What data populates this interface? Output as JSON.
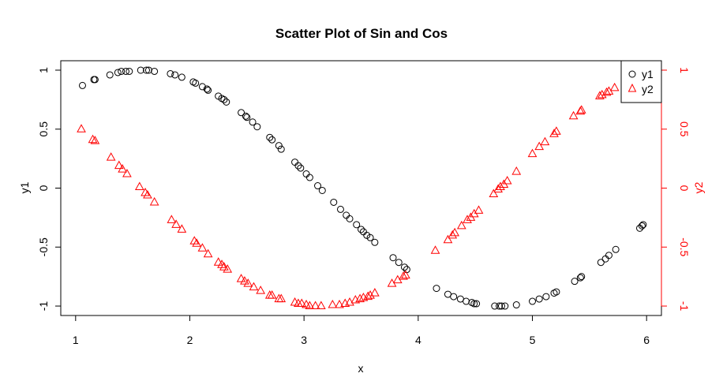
{
  "chart_data": {
    "type": "scatter",
    "title": "Scatter Plot of Sin and Cos",
    "xlabel": "x",
    "ylabel_left": "y1",
    "ylabel_right": "y2",
    "xlim": [
      0.87,
      6.13
    ],
    "ylim": [
      -1.08,
      1.08
    ],
    "x_ticks": [
      1,
      2,
      3,
      4,
      5,
      6
    ],
    "y_ticks_left": [
      -1,
      -0.5,
      0,
      0.5,
      1
    ],
    "y_ticks_right": [
      -1,
      -0.5,
      0,
      0.5,
      1
    ],
    "grid": false,
    "legend_position": "top-right",
    "colors": {
      "y1": "#000000",
      "y2": "#ff0000",
      "frame": "#000000"
    },
    "series": [
      {
        "name": "y1",
        "axis": "left",
        "marker": "circle",
        "color": "#000000",
        "points": [
          [
            1.06,
            0.87
          ],
          [
            1.16,
            0.92
          ],
          [
            1.17,
            0.92
          ],
          [
            1.3,
            0.96
          ],
          [
            1.37,
            0.98
          ],
          [
            1.4,
            0.99
          ],
          [
            1.44,
            0.99
          ],
          [
            1.47,
            0.99
          ],
          [
            1.57,
            1.0
          ],
          [
            1.62,
            1.0
          ],
          [
            1.64,
            1.0
          ],
          [
            1.69,
            0.99
          ],
          [
            1.83,
            0.97
          ],
          [
            1.87,
            0.96
          ],
          [
            1.93,
            0.94
          ],
          [
            2.03,
            0.9
          ],
          [
            2.05,
            0.89
          ],
          [
            2.11,
            0.86
          ],
          [
            2.15,
            0.84
          ],
          [
            2.16,
            0.83
          ],
          [
            2.25,
            0.78
          ],
          [
            2.28,
            0.76
          ],
          [
            2.3,
            0.75
          ],
          [
            2.32,
            0.73
          ],
          [
            2.45,
            0.64
          ],
          [
            2.49,
            0.61
          ],
          [
            2.5,
            0.6
          ],
          [
            2.55,
            0.56
          ],
          [
            2.59,
            0.52
          ],
          [
            2.7,
            0.43
          ],
          [
            2.72,
            0.41
          ],
          [
            2.78,
            0.36
          ],
          [
            2.8,
            0.33
          ],
          [
            2.92,
            0.22
          ],
          [
            2.95,
            0.19
          ],
          [
            2.97,
            0.17
          ],
          [
            3.02,
            0.12
          ],
          [
            3.05,
            0.09
          ],
          [
            3.12,
            0.02
          ],
          [
            3.16,
            -0.02
          ],
          [
            3.26,
            -0.12
          ],
          [
            3.32,
            -0.18
          ],
          [
            3.37,
            -0.23
          ],
          [
            3.4,
            -0.26
          ],
          [
            3.46,
            -0.31
          ],
          [
            3.5,
            -0.35
          ],
          [
            3.52,
            -0.37
          ],
          [
            3.55,
            -0.4
          ],
          [
            3.58,
            -0.42
          ],
          [
            3.62,
            -0.46
          ],
          [
            3.78,
            -0.59
          ],
          [
            3.83,
            -0.63
          ],
          [
            3.88,
            -0.67
          ],
          [
            3.9,
            -0.69
          ],
          [
            4.16,
            -0.85
          ],
          [
            4.26,
            -0.9
          ],
          [
            4.31,
            -0.92
          ],
          [
            4.37,
            -0.94
          ],
          [
            4.42,
            -0.96
          ],
          [
            4.47,
            -0.97
          ],
          [
            4.49,
            -0.98
          ],
          [
            4.51,
            -0.98
          ],
          [
            4.67,
            -1.0
          ],
          [
            4.71,
            -1.0
          ],
          [
            4.73,
            -1.0
          ],
          [
            4.76,
            -1.0
          ],
          [
            4.86,
            -0.99
          ],
          [
            5.0,
            -0.96
          ],
          [
            5.06,
            -0.94
          ],
          [
            5.12,
            -0.92
          ],
          [
            5.19,
            -0.89
          ],
          [
            5.21,
            -0.88
          ],
          [
            5.37,
            -0.79
          ],
          [
            5.42,
            -0.76
          ],
          [
            5.43,
            -0.75
          ],
          [
            5.6,
            -0.63
          ],
          [
            5.64,
            -0.6
          ],
          [
            5.67,
            -0.57
          ],
          [
            5.73,
            -0.52
          ],
          [
            5.94,
            -0.34
          ],
          [
            5.96,
            -0.32
          ],
          [
            5.97,
            -0.31
          ]
        ]
      },
      {
        "name": "y2",
        "axis": "right",
        "marker": "triangle",
        "color": "#ff0000",
        "points": [
          [
            1.05,
            0.5
          ],
          [
            1.15,
            0.41
          ],
          [
            1.17,
            0.4
          ],
          [
            1.31,
            0.26
          ],
          [
            1.38,
            0.19
          ],
          [
            1.41,
            0.16
          ],
          [
            1.45,
            0.12
          ],
          [
            1.56,
            0.01
          ],
          [
            1.61,
            -0.04
          ],
          [
            1.63,
            -0.06
          ],
          [
            1.69,
            -0.12
          ],
          [
            1.84,
            -0.27
          ],
          [
            1.88,
            -0.31
          ],
          [
            1.93,
            -0.35
          ],
          [
            2.04,
            -0.45
          ],
          [
            2.06,
            -0.47
          ],
          [
            2.11,
            -0.51
          ],
          [
            2.16,
            -0.56
          ],
          [
            2.25,
            -0.63
          ],
          [
            2.28,
            -0.65
          ],
          [
            2.3,
            -0.67
          ],
          [
            2.33,
            -0.69
          ],
          [
            2.45,
            -0.77
          ],
          [
            2.48,
            -0.79
          ],
          [
            2.51,
            -0.81
          ],
          [
            2.56,
            -0.84
          ],
          [
            2.62,
            -0.87
          ],
          [
            2.7,
            -0.91
          ],
          [
            2.72,
            -0.91
          ],
          [
            2.78,
            -0.94
          ],
          [
            2.8,
            -0.94
          ],
          [
            2.92,
            -0.97
          ],
          [
            2.95,
            -0.98
          ],
          [
            2.98,
            -0.98
          ],
          [
            3.02,
            -0.99
          ],
          [
            3.05,
            -1.0
          ],
          [
            3.1,
            -1.0
          ],
          [
            3.15,
            -1.0
          ],
          [
            3.25,
            -0.99
          ],
          [
            3.31,
            -0.99
          ],
          [
            3.36,
            -0.98
          ],
          [
            3.4,
            -0.97
          ],
          [
            3.45,
            -0.95
          ],
          [
            3.49,
            -0.94
          ],
          [
            3.52,
            -0.93
          ],
          [
            3.56,
            -0.92
          ],
          [
            3.58,
            -0.91
          ],
          [
            3.62,
            -0.89
          ],
          [
            3.77,
            -0.81
          ],
          [
            3.82,
            -0.78
          ],
          [
            3.87,
            -0.75
          ],
          [
            3.89,
            -0.74
          ],
          [
            4.15,
            -0.53
          ],
          [
            4.26,
            -0.44
          ],
          [
            4.3,
            -0.4
          ],
          [
            4.32,
            -0.38
          ],
          [
            4.38,
            -0.32
          ],
          [
            4.43,
            -0.27
          ],
          [
            4.46,
            -0.25
          ],
          [
            4.49,
            -0.22
          ],
          [
            4.53,
            -0.19
          ],
          [
            4.66,
            -0.05
          ],
          [
            4.7,
            -0.01
          ],
          [
            4.72,
            0.01
          ],
          [
            4.75,
            0.03
          ],
          [
            4.78,
            0.06
          ],
          [
            4.86,
            0.14
          ],
          [
            5.0,
            0.29
          ],
          [
            5.06,
            0.35
          ],
          [
            5.11,
            0.39
          ],
          [
            5.19,
            0.46
          ],
          [
            5.21,
            0.48
          ],
          [
            5.36,
            0.61
          ],
          [
            5.42,
            0.65
          ],
          [
            5.43,
            0.66
          ],
          [
            5.59,
            0.78
          ],
          [
            5.61,
            0.79
          ],
          [
            5.65,
            0.81
          ],
          [
            5.67,
            0.82
          ],
          [
            5.72,
            0.85
          ]
        ]
      }
    ]
  }
}
